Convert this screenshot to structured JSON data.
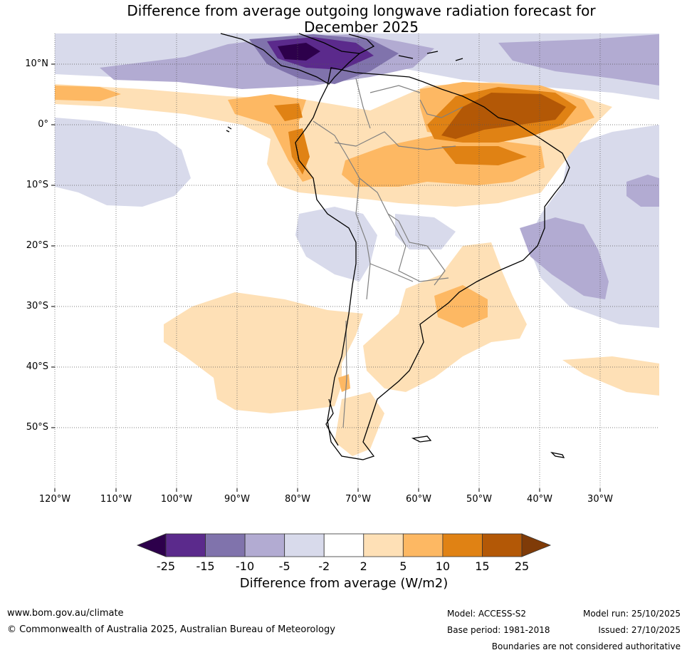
{
  "title": {
    "line1": "Difference from average outgoing longwave radiation forecast for",
    "line2": "December 2025"
  },
  "map": {
    "lat_labels": [
      "10°N",
      "0°",
      "10°S",
      "20°S",
      "30°S",
      "40°S",
      "50°S"
    ],
    "lon_labels": [
      "120°W",
      "110°W",
      "100°W",
      "90°W",
      "80°W",
      "70°W",
      "60°W",
      "50°W",
      "40°W",
      "30°W"
    ],
    "lat_range": [
      -60,
      15
    ],
    "lon_range": [
      -120,
      -20
    ]
  },
  "colorbar": {
    "title": "Difference from average (W/m2)",
    "bounds": [
      "-25",
      "-15",
      "-10",
      "-5",
      "-2",
      "2",
      "5",
      "10",
      "15",
      "25"
    ],
    "colors": [
      "#2d004b",
      "#5b2a8c",
      "#8073ac",
      "#b2abd2",
      "#d8daeb",
      "#ffffff",
      "#fee0b6",
      "#fdb863",
      "#e08214",
      "#b35806",
      "#7f3b08"
    ]
  },
  "footer": {
    "website": "www.bom.gov.au/climate",
    "copyright": "© Commonwealth of Australia 2025, Australian Bureau of Meteorology",
    "model": "Model: ACCESS-S2",
    "base_period": "Base period: 1981-2018",
    "model_run": "Model run: 25/10/2025",
    "issued": "Issued: 27/10/2025",
    "disclaimer": "Boundaries are not considered authoritative"
  }
}
